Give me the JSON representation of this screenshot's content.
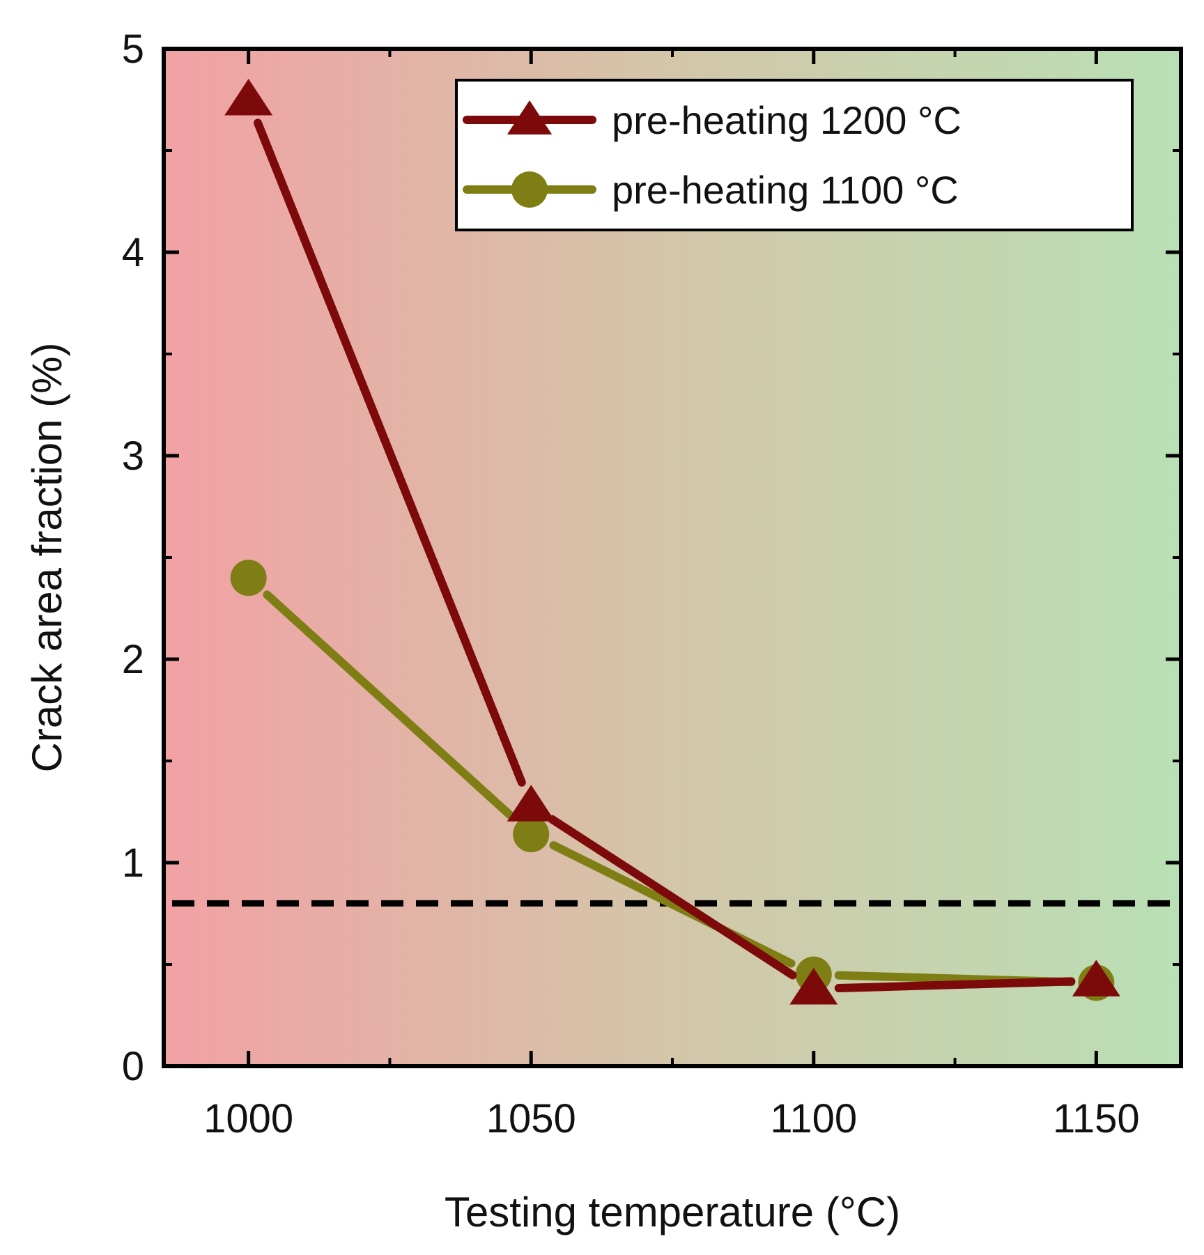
{
  "chart_data": {
    "type": "line",
    "title": "",
    "xlabel": "Testing temperature (°C)",
    "ylabel": "Crack area fraction (%)",
    "x": [
      1000,
      1050,
      1100,
      1150
    ],
    "xlim": [
      985,
      1165
    ],
    "ylim": [
      0,
      5
    ],
    "xticks": [
      1000,
      1050,
      1100,
      1150
    ],
    "xtick_labels": [
      "1000",
      "1050",
      "1100",
      "1150"
    ],
    "yticks": [
      0,
      1,
      2,
      3,
      4,
      5
    ],
    "ytick_labels": [
      "0",
      "1",
      "2",
      "3",
      "4",
      "5"
    ],
    "y_minor_step": 0.5,
    "grid": false,
    "legend_position": "top-right",
    "background_gradient": {
      "left": "#f2a1a4",
      "middle": "#d3c6a9",
      "right": "#b9e0b5"
    },
    "reference_line": {
      "y": 0.8,
      "style": "dashed",
      "color": "#000000"
    },
    "series": [
      {
        "name": "pre-heating 1200 °C",
        "marker": "triangle",
        "color": "#7d0a0a",
        "values": [
          4.75,
          1.28,
          0.38,
          0.42
        ]
      },
      {
        "name": "pre-heating 1100 °C",
        "marker": "circle",
        "color": "#7e7e14",
        "values": [
          2.4,
          1.14,
          0.45,
          0.41
        ]
      }
    ]
  }
}
